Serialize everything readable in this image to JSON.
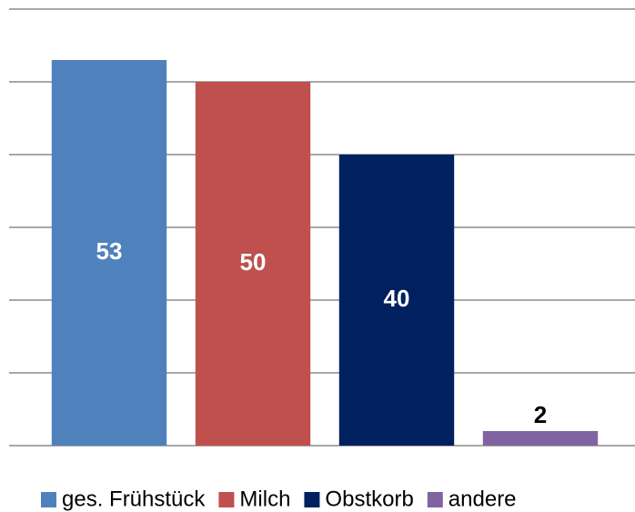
{
  "chart_data": {
    "type": "bar",
    "categories": [
      "ges. Frühstück",
      "Milch",
      "Obstkorb",
      "andere"
    ],
    "values": [
      53,
      50,
      40,
      2
    ],
    "colors": [
      "#4f81bd",
      "#c0504d",
      "#002060",
      "#8064a2"
    ],
    "ylim": [
      0,
      60
    ],
    "yticks": [
      0,
      10,
      20,
      30,
      40,
      50,
      60
    ],
    "grid": true,
    "legend": "bottom"
  }
}
